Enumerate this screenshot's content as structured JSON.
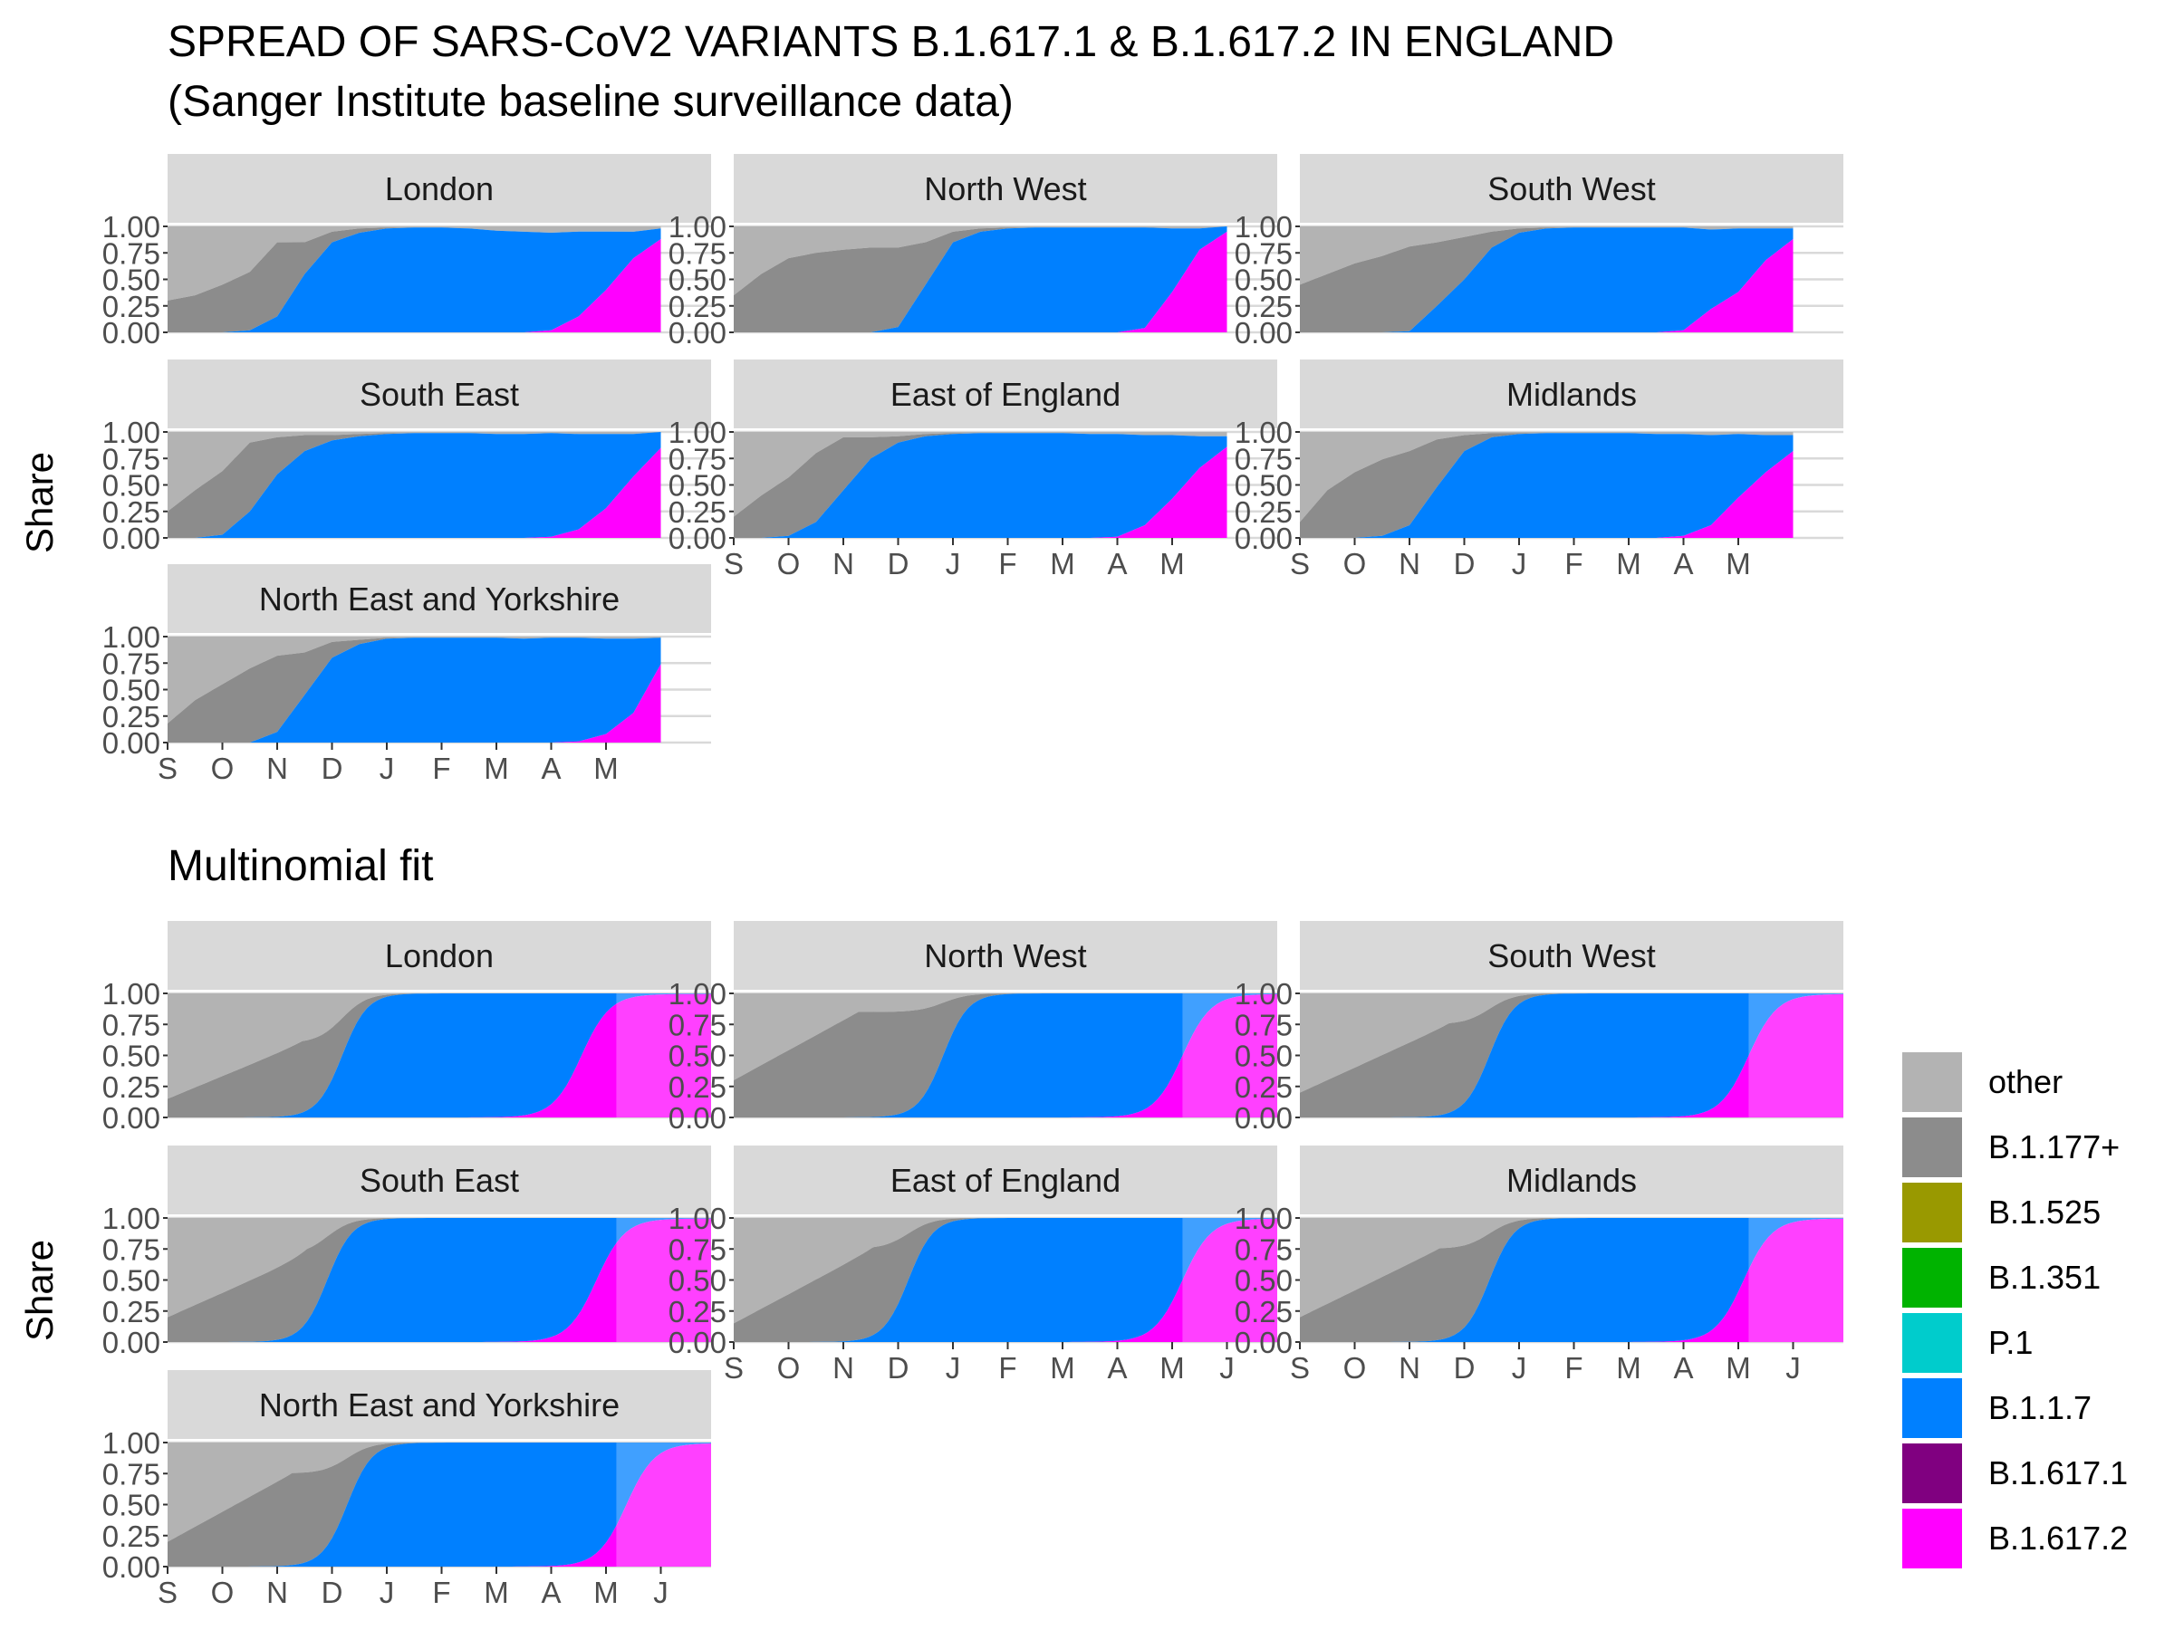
{
  "title": {
    "line1": "SPREAD OF SARS-CoV2 VARIANTS B.1.617.1 & B.1.617.2 IN ENGLAND",
    "line2": "(Sanger Institute baseline surveillance data)"
  },
  "section2_title": "Multinomial fit",
  "ylabel": "Share",
  "y_ticks": [
    "0.00",
    "0.25",
    "0.50",
    "0.75",
    "1.00"
  ],
  "x_ticks_observed": [
    "S",
    "O",
    "N",
    "D",
    "J",
    "F",
    "M",
    "A",
    "M"
  ],
  "x_ticks_fit": [
    "S",
    "O",
    "N",
    "D",
    "J",
    "F",
    "M",
    "A",
    "M",
    "J"
  ],
  "colors": {
    "other": "#b3b3b3",
    "B.1.177+": "#8c8c8c",
    "B.1.525": "#999900",
    "B.1.351": "#00b300",
    "P.1": "#00cccc",
    "B.1.1.7": "#0080ff",
    "B.1.617.1": "#800080",
    "B.1.617.2": "#ff00ff",
    "strip_bg": "#d9d9d9",
    "grid": "#d9d9d9"
  },
  "legend": {
    "items": [
      "other",
      "B.1.177+",
      "B.1.525",
      "B.1.351",
      "P.1",
      "B.1.1.7",
      "B.1.617.1",
      "B.1.617.2"
    ]
  },
  "chart_data": [
    {
      "type": "area",
      "section": "observed",
      "ylabel": "Share",
      "ylim": [
        0,
        1
      ],
      "x_axis": "time Sep 2020 - end of May 2021 (months S O N D J F M A M)",
      "series_order": [
        "other",
        "B.1.177+",
        "B.1.1.7",
        "B.1.617.2"
      ],
      "panels": [
        {
          "name": "London",
          "x": [
            0,
            0.5,
            1,
            1.5,
            2,
            2.5,
            3,
            3.5,
            4,
            4.5,
            5,
            5.5,
            6,
            6.5,
            7,
            7.5,
            8,
            8.5,
            9
          ],
          "b1177": [
            0.3,
            0.35,
            0.45,
            0.55,
            0.7,
            0.3,
            0.1,
            0.04,
            0.01,
            0,
            0,
            0,
            0,
            0,
            0,
            0,
            0,
            0,
            0
          ],
          "b117": [
            0,
            0,
            0,
            0.02,
            0.15,
            0.55,
            0.85,
            0.94,
            0.98,
            0.99,
            0.99,
            0.98,
            0.96,
            0.95,
            0.92,
            0.8,
            0.55,
            0.25,
            0.1
          ],
          "b16172": [
            0,
            0,
            0,
            0,
            0,
            0,
            0,
            0,
            0,
            0,
            0,
            0,
            0,
            0,
            0.02,
            0.15,
            0.4,
            0.7,
            0.88
          ]
        },
        {
          "name": "North West",
          "x": [
            0,
            0.5,
            1,
            1.5,
            2,
            2.5,
            3,
            3.5,
            4,
            4.5,
            5,
            5.5,
            6,
            6.5,
            7,
            7.5,
            8,
            8.5,
            9
          ],
          "b1177": [
            0.35,
            0.55,
            0.7,
            0.75,
            0.78,
            0.8,
            0.75,
            0.4,
            0.1,
            0.03,
            0.01,
            0,
            0,
            0,
            0,
            0,
            0,
            0,
            0
          ],
          "b117": [
            0,
            0,
            0,
            0,
            0,
            0,
            0.05,
            0.45,
            0.85,
            0.95,
            0.98,
            0.99,
            0.99,
            0.99,
            0.99,
            0.95,
            0.6,
            0.2,
            0.05
          ],
          "b16172": [
            0,
            0,
            0,
            0,
            0,
            0,
            0,
            0,
            0,
            0,
            0,
            0,
            0,
            0,
            0,
            0.04,
            0.38,
            0.78,
            0.95
          ]
        },
        {
          "name": "South West",
          "x": [
            0,
            0.5,
            1,
            1.5,
            2,
            2.5,
            3,
            3.5,
            4,
            4.5,
            5,
            5.5,
            6,
            6.5,
            7,
            7.5,
            8,
            8.5,
            9
          ],
          "b1177": [
            0.45,
            0.55,
            0.65,
            0.72,
            0.8,
            0.6,
            0.4,
            0.15,
            0.04,
            0.01,
            0,
            0,
            0,
            0,
            0,
            0,
            0,
            0,
            0
          ],
          "b117": [
            0,
            0,
            0,
            0,
            0.01,
            0.25,
            0.5,
            0.8,
            0.94,
            0.98,
            0.99,
            0.99,
            0.99,
            0.99,
            0.97,
            0.75,
            0.6,
            0.3,
            0.1
          ],
          "b16172": [
            0,
            0,
            0,
            0,
            0,
            0,
            0,
            0,
            0,
            0,
            0,
            0,
            0,
            0,
            0.02,
            0.22,
            0.38,
            0.68,
            0.88
          ]
        },
        {
          "name": "South East",
          "x": [
            0,
            0.5,
            1,
            1.5,
            2,
            2.5,
            3,
            3.5,
            4,
            4.5,
            5,
            5.5,
            6,
            6.5,
            7,
            7.5,
            8,
            8.5,
            9
          ],
          "b1177": [
            0.25,
            0.45,
            0.6,
            0.65,
            0.35,
            0.15,
            0.05,
            0.02,
            0.01,
            0,
            0,
            0,
            0,
            0,
            0,
            0,
            0,
            0,
            0
          ],
          "b117": [
            0,
            0,
            0.03,
            0.25,
            0.6,
            0.82,
            0.92,
            0.96,
            0.98,
            0.99,
            0.99,
            0.99,
            0.98,
            0.98,
            0.98,
            0.9,
            0.7,
            0.4,
            0.15
          ],
          "b16172": [
            0,
            0,
            0,
            0,
            0,
            0,
            0,
            0,
            0,
            0,
            0,
            0,
            0,
            0,
            0.01,
            0.08,
            0.28,
            0.58,
            0.85
          ]
        },
        {
          "name": "East of England",
          "x": [
            0,
            0.5,
            1,
            1.5,
            2,
            2.5,
            3,
            3.5,
            4,
            4.5,
            5,
            5.5,
            6,
            6.5,
            7,
            7.5,
            8,
            8.5,
            9
          ],
          "b1177": [
            0.2,
            0.4,
            0.55,
            0.65,
            0.5,
            0.2,
            0.06,
            0.02,
            0.01,
            0,
            0,
            0,
            0,
            0,
            0,
            0,
            0,
            0,
            0
          ],
          "b117": [
            0,
            0,
            0.02,
            0.15,
            0.45,
            0.75,
            0.9,
            0.96,
            0.98,
            0.99,
            0.99,
            0.99,
            0.99,
            0.98,
            0.97,
            0.85,
            0.6,
            0.3,
            0.1
          ],
          "b16172": [
            0,
            0,
            0,
            0,
            0,
            0,
            0,
            0,
            0,
            0,
            0,
            0,
            0,
            0,
            0.01,
            0.12,
            0.37,
            0.66,
            0.86
          ]
        },
        {
          "name": "Midlands",
          "x": [
            0,
            0.5,
            1,
            1.5,
            2,
            2.5,
            3,
            3.5,
            4,
            4.5,
            5,
            5.5,
            6,
            6.5,
            7,
            7.5,
            8,
            8.5,
            9
          ],
          "b1177": [
            0.15,
            0.45,
            0.62,
            0.72,
            0.7,
            0.45,
            0.15,
            0.04,
            0.01,
            0,
            0,
            0,
            0,
            0,
            0,
            0,
            0,
            0,
            0
          ],
          "b117": [
            0,
            0,
            0,
            0.02,
            0.12,
            0.48,
            0.82,
            0.95,
            0.98,
            0.99,
            0.99,
            0.99,
            0.99,
            0.98,
            0.96,
            0.85,
            0.6,
            0.35,
            0.15
          ],
          "b16172": [
            0,
            0,
            0,
            0,
            0,
            0,
            0,
            0,
            0,
            0,
            0,
            0,
            0,
            0,
            0.02,
            0.12,
            0.38,
            0.62,
            0.82
          ]
        },
        {
          "name": "North East and Yorkshire",
          "x": [
            0,
            0.5,
            1,
            1.5,
            2,
            2.5,
            3,
            3.5,
            4,
            4.5,
            5,
            5.5,
            6,
            6.5,
            7,
            7.5,
            8,
            8.5,
            9
          ],
          "b1177": [
            0.18,
            0.4,
            0.55,
            0.7,
            0.72,
            0.4,
            0.15,
            0.04,
            0.01,
            0,
            0,
            0,
            0,
            0,
            0,
            0,
            0,
            0,
            0
          ],
          "b117": [
            0,
            0,
            0,
            0,
            0.1,
            0.45,
            0.8,
            0.93,
            0.98,
            0.99,
            0.99,
            0.99,
            0.99,
            0.98,
            0.99,
            0.98,
            0.9,
            0.7,
            0.25
          ],
          "b16172": [
            0,
            0,
            0,
            0,
            0,
            0,
            0,
            0,
            0,
            0,
            0,
            0,
            0,
            0,
            0,
            0.01,
            0.08,
            0.28,
            0.74
          ]
        }
      ]
    },
    {
      "type": "area",
      "section": "fit",
      "title": "Multinomial fit",
      "ylabel": "Share",
      "ylim": [
        0,
        1
      ],
      "x_axis": "time Sep 2020 - Jun 2021 (months S O N D J F M A M J)",
      "series_order": [
        "other",
        "B.1.177+",
        "B.1.1.7",
        "B.1.617.2"
      ],
      "panels": [
        {
          "name": "London",
          "s1177": [
            0.15,
            0.6,
            2.7
          ],
          "s117": [
            3.5,
            4.0
          ],
          "s16172": [
            8.3,
            3.5
          ]
        },
        {
          "name": "North West",
          "s1177": [
            0.3,
            0.85,
            2.5
          ],
          "s117": [
            4.2,
            4.0
          ],
          "s16172": [
            9.0,
            3.5
          ]
        },
        {
          "name": "South West",
          "s1177": [
            0.2,
            0.75,
            3.0
          ],
          "s117": [
            3.8,
            4.0
          ],
          "s16172": [
            9.0,
            3.5
          ]
        },
        {
          "name": "South East",
          "s1177": [
            0.2,
            0.7,
            2.8
          ],
          "s117": [
            3.2,
            4.0
          ],
          "s16172": [
            8.6,
            3.5
          ]
        },
        {
          "name": "East of England",
          "s1177": [
            0.15,
            0.75,
            2.8
          ],
          "s117": [
            3.5,
            4.0
          ],
          "s16172": [
            9.0,
            3.5
          ]
        },
        {
          "name": "Midlands",
          "s1177": [
            0.2,
            0.75,
            2.8
          ],
          "s117": [
            3.8,
            4.0
          ],
          "s16172": [
            8.9,
            3.5
          ]
        },
        {
          "name": "North East and Yorkshire",
          "s1177": [
            0.2,
            0.75,
            2.5
          ],
          "s117": [
            3.6,
            4.0
          ],
          "s16172": [
            9.2,
            3.5
          ]
        }
      ]
    }
  ]
}
